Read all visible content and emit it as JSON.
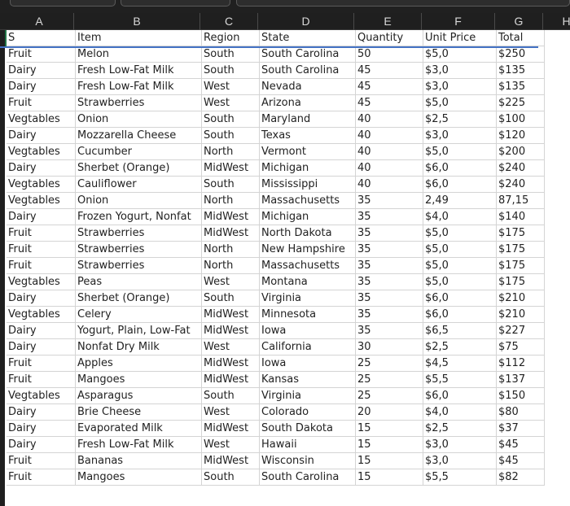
{
  "columns": [
    "A",
    "B",
    "C",
    "D",
    "E",
    "F",
    "G",
    "H"
  ],
  "header_row": [
    "S",
    "Item",
    "Region",
    "State",
    "Quantity",
    "Unit Price",
    "Total"
  ],
  "rows": [
    [
      "Fruit",
      "Melon",
      "South",
      "South Carolina",
      "50",
      "$5,0",
      "$250"
    ],
    [
      "Dairy",
      "Fresh Low-Fat Milk",
      "South",
      "South Carolina",
      "45",
      "$3,0",
      "$135"
    ],
    [
      "Dairy",
      "Fresh Low-Fat Milk",
      "West",
      "Nevada",
      "45",
      "$3,0",
      "$135"
    ],
    [
      "Fruit",
      "Strawberries",
      "West",
      "Arizona",
      "45",
      "$5,0",
      "$225"
    ],
    [
      "Vegtables",
      "Onion",
      "South",
      "Maryland",
      "40",
      "$2,5",
      "$100"
    ],
    [
      "Dairy",
      "Mozzarella Cheese",
      "South",
      "Texas",
      "40",
      "$3,0",
      "$120"
    ],
    [
      "Vegtables",
      "Cucumber",
      "North",
      "Vermont",
      "40",
      "$5,0",
      "$200"
    ],
    [
      "Dairy",
      "Sherbet (Orange)",
      "MidWest",
      "Michigan",
      "40",
      "$6,0",
      "$240"
    ],
    [
      "Vegtables",
      "Cauliflower",
      "South",
      "Mississippi",
      "40",
      "$6,0",
      "$240"
    ],
    [
      "Vegtables",
      "Onion",
      "North",
      "Massachusetts",
      "35",
      "2,49",
      "87,15"
    ],
    [
      "Dairy",
      "Frozen Yogurt, Nonfat",
      "MidWest",
      "Michigan",
      "35",
      "$4,0",
      "$140"
    ],
    [
      "Fruit",
      "Strawberries",
      "MidWest",
      "North Dakota",
      "35",
      "$5,0",
      "$175"
    ],
    [
      "Fruit",
      "Strawberries",
      "North",
      "New Hampshire",
      "35",
      "$5,0",
      "$175"
    ],
    [
      "Fruit",
      "Strawberries",
      "North",
      "Massachusetts",
      "35",
      "$5,0",
      "$175"
    ],
    [
      "Vegtables",
      "Peas",
      "West",
      "Montana",
      "35",
      "$5,0",
      "$175"
    ],
    [
      "Dairy",
      "Sherbet (Orange)",
      "South",
      "Virginia",
      "35",
      "$6,0",
      "$210"
    ],
    [
      "Vegtables",
      "Celery",
      "MidWest",
      "Minnesota",
      "35",
      "$6,0",
      "$210"
    ],
    [
      "Dairy",
      "Yogurt, Plain, Low-Fat",
      "MidWest",
      "Iowa",
      "35",
      "$6,5",
      "$227"
    ],
    [
      "Dairy",
      "Nonfat Dry Milk",
      "West",
      "California",
      "30",
      "$2,5",
      "$75"
    ],
    [
      "Fruit",
      "Apples",
      "MidWest",
      "Iowa",
      "25",
      "$4,5",
      "$112"
    ],
    [
      "Fruit",
      "Mangoes",
      "MidWest",
      "Kansas",
      "25",
      "$5,5",
      "$137"
    ],
    [
      "Vegtables",
      "Asparagus",
      "South",
      "Virginia",
      "25",
      "$6,0",
      "$150"
    ],
    [
      "Dairy",
      "Brie Cheese",
      "West",
      "Colorado",
      "20",
      "$4,0",
      "$80"
    ],
    [
      "Dairy",
      "Evaporated Milk",
      "MidWest",
      "South Dakota",
      "15",
      "$2,5",
      "$37"
    ],
    [
      "Dairy",
      "Fresh Low-Fat Milk",
      "West",
      "Hawaii",
      "15",
      "$3,0",
      "$45"
    ],
    [
      "Fruit",
      "Bananas",
      "MidWest",
      "Wisconsin",
      "15",
      "$3,0",
      "$45"
    ],
    [
      "Fruit",
      "Mangoes",
      "South",
      "South Carolina",
      "15",
      "$5,5",
      "$82"
    ]
  ]
}
